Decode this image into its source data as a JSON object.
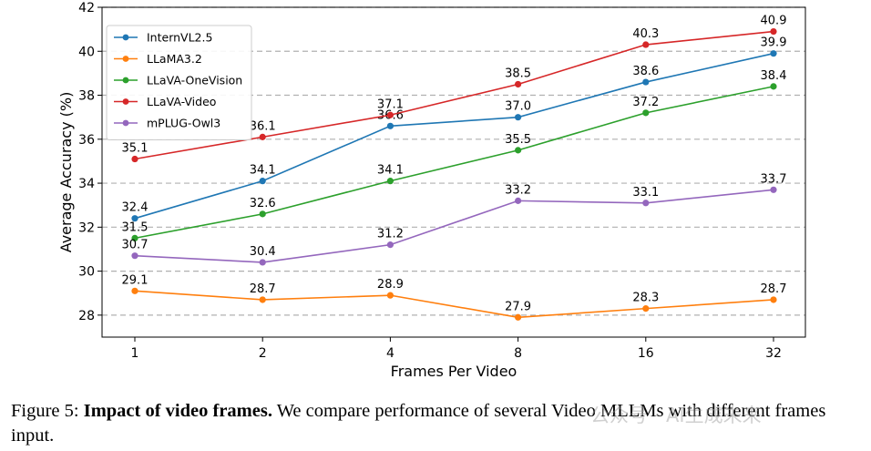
{
  "chart_data": {
    "type": "line",
    "x": [
      "1",
      "2",
      "4",
      "8",
      "16",
      "32"
    ],
    "xlabel": "Frames Per Video",
    "ylabel": "Average Accuracy (%)",
    "ylim": [
      27,
      42
    ],
    "yticks": [
      28,
      30,
      32,
      34,
      36,
      38,
      40,
      42
    ],
    "grid": "horizontal dashed",
    "legend_position": "top-left",
    "series": [
      {
        "name": "InternVL2.5",
        "color": "#1f77b4",
        "values": [
          32.4,
          34.1,
          36.6,
          37.0,
          38.6,
          39.9
        ],
        "labels": [
          "32.4",
          "34.1",
          "36.6",
          "37.0",
          "38.6",
          "39.9"
        ]
      },
      {
        "name": "LLaMA3.2",
        "color": "#ff7f0e",
        "values": [
          29.1,
          28.7,
          28.9,
          27.9,
          28.3,
          28.7
        ],
        "labels": [
          "29.1",
          "28.7",
          "28.9",
          "27.9",
          "28.3",
          "28.7"
        ]
      },
      {
        "name": "LLaVA-OneVision",
        "color": "#2ca02c",
        "values": [
          31.5,
          32.6,
          34.1,
          35.5,
          37.2,
          38.4
        ],
        "labels": [
          "31.5",
          "32.6",
          "34.1",
          "35.5",
          "37.2",
          "38.4"
        ]
      },
      {
        "name": "LLaVA-Video",
        "color": "#d62728",
        "values": [
          35.1,
          36.1,
          37.1,
          38.5,
          40.3,
          40.9
        ],
        "labels": [
          "35.1",
          "36.1",
          "37.1",
          "38.5",
          "40.3",
          "40.9"
        ]
      },
      {
        "name": "mPLUG-Owl3",
        "color": "#9467bd",
        "values": [
          30.7,
          30.4,
          31.2,
          33.2,
          33.1,
          33.7
        ],
        "labels": [
          "30.7",
          "30.4",
          "31.2",
          "33.2",
          "33.1",
          "33.7"
        ]
      }
    ]
  },
  "caption": {
    "prefix": "Figure 5: ",
    "bold": "Impact of video frames.",
    "rest": " We compare performance of several Video MLLMs with different frames input."
  },
  "watermark": "公众号 · AI生成未来"
}
